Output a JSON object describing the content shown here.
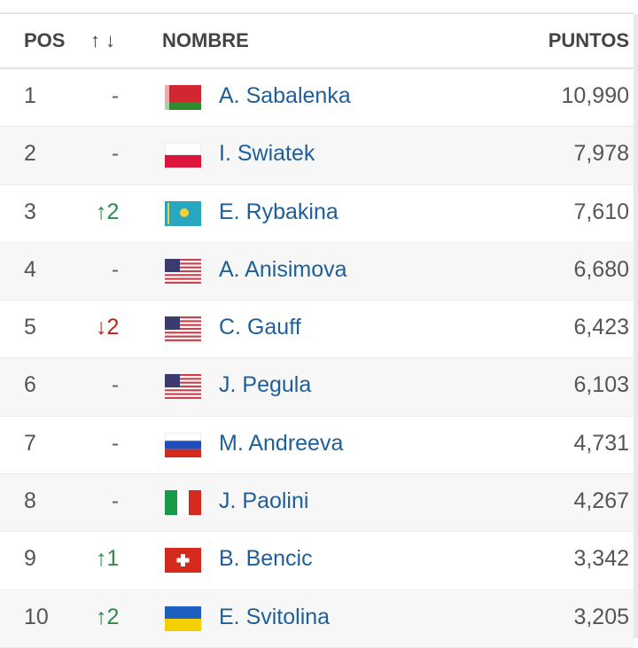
{
  "header": {
    "pos": "POS",
    "change": "↑↓",
    "name": "NOMBRE",
    "points": "PUNTOS"
  },
  "colors": {
    "up": "#2e8b4a",
    "down": "#b3261e",
    "link": "#1f5f99"
  },
  "rows": [
    {
      "pos": "1",
      "change": "-",
      "dir": "none",
      "flag": "belarus",
      "name": "A. Sabalenka",
      "points": "10,990"
    },
    {
      "pos": "2",
      "change": "-",
      "dir": "none",
      "flag": "poland",
      "name": "I. Swiatek",
      "points": "7,978"
    },
    {
      "pos": "3",
      "change": "↑2",
      "dir": "up",
      "flag": "kazakhstan",
      "name": "E. Rybakina",
      "points": "7,610"
    },
    {
      "pos": "4",
      "change": "-",
      "dir": "none",
      "flag": "usa",
      "name": "A. Anisimova",
      "points": "6,680"
    },
    {
      "pos": "5",
      "change": "↓2",
      "dir": "down",
      "flag": "usa",
      "name": "C. Gauff",
      "points": "6,423"
    },
    {
      "pos": "6",
      "change": "-",
      "dir": "none",
      "flag": "usa",
      "name": "J. Pegula",
      "points": "6,103"
    },
    {
      "pos": "7",
      "change": "-",
      "dir": "none",
      "flag": "russia",
      "name": "M. Andreeva",
      "points": "4,731"
    },
    {
      "pos": "8",
      "change": "-",
      "dir": "none",
      "flag": "italy",
      "name": "J. Paolini",
      "points": "4,267"
    },
    {
      "pos": "9",
      "change": "↑1",
      "dir": "up",
      "flag": "switzerland",
      "name": "B. Bencic",
      "points": "3,342"
    },
    {
      "pos": "10",
      "change": "↑2",
      "dir": "up",
      "flag": "ukraine",
      "name": "E. Svitolina",
      "points": "3,205"
    }
  ]
}
